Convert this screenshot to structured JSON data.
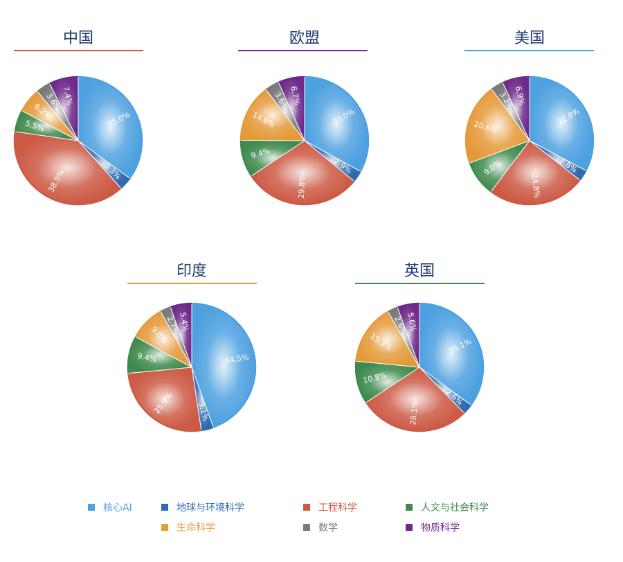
{
  "chart_data": {
    "type": "pie",
    "categories": [
      "核心AI",
      "地球与环境科学",
      "工程科学",
      "人文与社会科学",
      "生命科学",
      "数学",
      "物质科学"
    ],
    "colors": [
      "#4ea1e0",
      "#2e6bb0",
      "#cc5a45",
      "#3f8a4e",
      "#e59a3a",
      "#7a7a7a",
      "#6e2a8a"
    ],
    "legend_position": "bottom",
    "charts": [
      {
        "title": "中国",
        "title_color": "#1f3a6e",
        "underline_color": "#cc5a45",
        "values": [
          35.0,
          3.3,
          38.9,
          5.5,
          6.2,
          3.6,
          7.4
        ],
        "labels": [
          "35.0%",
          "3.3%",
          "38.9%",
          "5.5%",
          "6.2%",
          "3.6%",
          "7.4%"
        ]
      },
      {
        "title": "欧盟",
        "title_color": "#1f3a6e",
        "underline_color": "#6e2a8a",
        "values": [
          33.0,
          2.9,
          29.8,
          9.4,
          14.6,
          3.6,
          6.7
        ],
        "labels": [
          "33.0%",
          "2.9%",
          "29.8%",
          "9.4%",
          "14.6%",
          "3.6%",
          "6.7%"
        ]
      },
      {
        "title": "美国",
        "title_color": "#1f3a6e",
        "underline_color": "#4ea1e0",
        "values": [
          32.8,
          2.8,
          24.8,
          9.0,
          20.6,
          3.2,
          6.9
        ],
        "labels": [
          "32.8%",
          "2.8%",
          "24.8%",
          "9.0%",
          "20.6%",
          "3.2%",
          "6.9%"
        ]
      },
      {
        "title": "印度",
        "title_color": "#1f3a6e",
        "underline_color": "#e59a3a",
        "values": [
          44.5,
          3.1,
          25.9,
          9.4,
          9.0,
          2.7,
          5.4
        ],
        "labels": [
          "44.5%",
          "3.1%",
          "25.9%",
          "9.4%",
          "9.0%",
          "2.7%",
          "5.4%"
        ]
      },
      {
        "title": "英国",
        "title_color": "#1f3a6e",
        "underline_color": "#3f8a4e",
        "values": [
          35.1,
          2.6,
          28.1,
          10.8,
          15.3,
          2.6,
          5.6
        ],
        "labels": [
          "35.1%",
          "2.6%",
          "28.1%",
          "10.8%",
          "15.3%",
          "2.6%",
          "5.6%"
        ]
      }
    ]
  }
}
